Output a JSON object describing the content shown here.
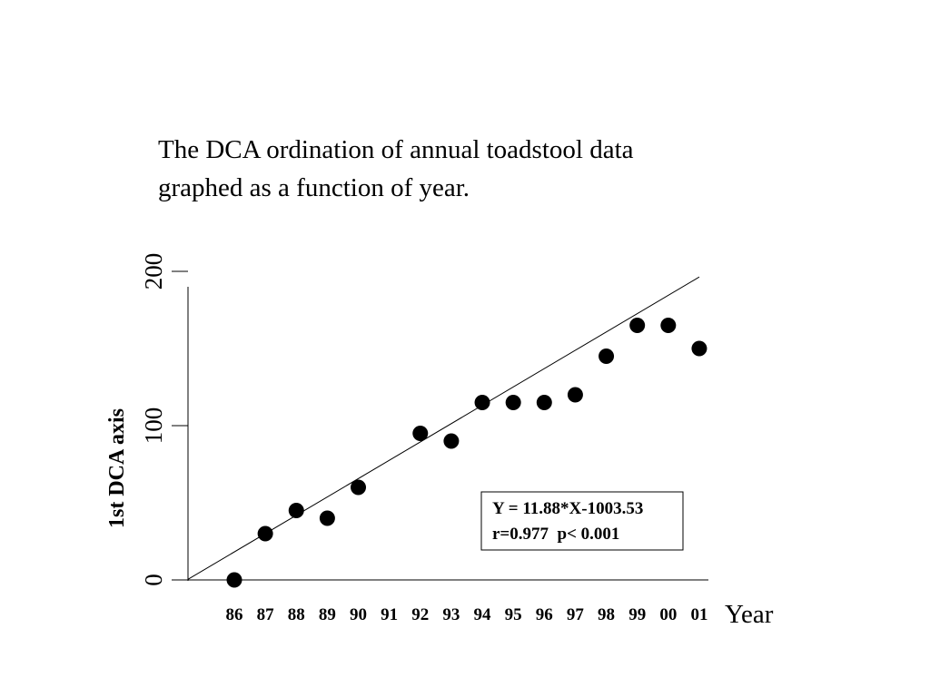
{
  "caption": {
    "line1": "The DCA ordination of annual toadstool data",
    "line2": "graphed as a function of year."
  },
  "chart_data": {
    "type": "scatter",
    "title": "",
    "xlabel": "Year",
    "ylabel": "1st DCA axis",
    "categories": [
      "86",
      "87",
      "88",
      "89",
      "90",
      "91",
      "92",
      "93",
      "94",
      "95",
      "96",
      "97",
      "98",
      "99",
      "00",
      "01"
    ],
    "x": [
      86,
      87,
      88,
      89,
      90,
      92,
      93,
      94,
      95,
      96,
      97,
      98,
      99,
      100,
      101
    ],
    "y": [
      0,
      30,
      45,
      40,
      60,
      95,
      90,
      115,
      115,
      115,
      120,
      145,
      165,
      165,
      150
    ],
    "ylim": [
      0,
      190
    ],
    "yticks": [
      0,
      100,
      200
    ],
    "yticklabels": [
      "0",
      "100",
      "200"
    ],
    "xlim": [
      84.5,
      101.3
    ],
    "fit_line": {
      "slope": 11.88,
      "intercept": -1003.53,
      "x_start": 84.5,
      "x_end": 101
    },
    "annotation": {
      "line1": "Y = 11.88*X-1003.53",
      "line2": "r=0.977  p< 0.001"
    },
    "marker_color": "#000000",
    "grid": false
  }
}
